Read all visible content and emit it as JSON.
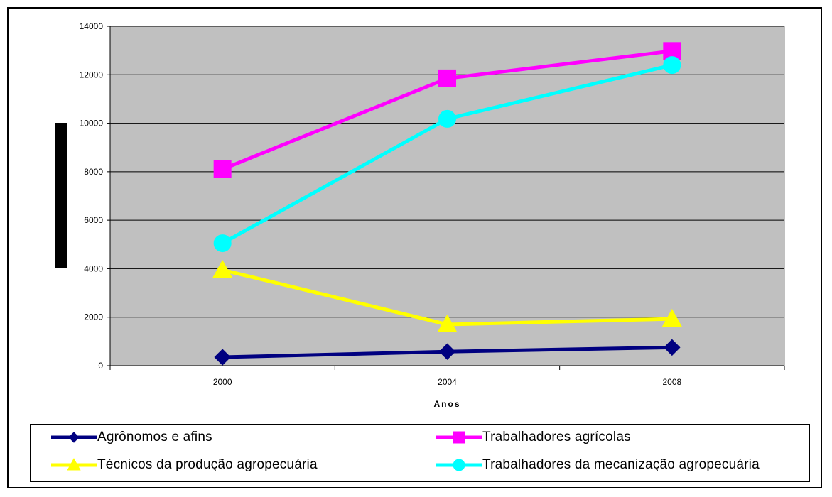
{
  "chart_data": {
    "type": "line",
    "x": [
      2000,
      2004,
      2008
    ],
    "categories": [
      "2000",
      "2004",
      "2008"
    ],
    "xlabel": "Anos",
    "ylabel": "",
    "ylim": [
      0,
      14000
    ],
    "yticks": [
      0,
      2000,
      4000,
      6000,
      8000,
      10000,
      12000,
      14000
    ],
    "ytick_labels": [
      "0",
      "2000",
      "4000",
      "6000",
      "8000",
      "10000",
      "12000",
      "14000"
    ],
    "grid": true,
    "plot_background": "#c0c0c0",
    "legend_position": "bottom",
    "series": [
      {
        "name": "Agrônomos e afins",
        "values": [
          350,
          580,
          750
        ],
        "color": "#000080",
        "marker": "diamond"
      },
      {
        "name": "Trabalhadores agrícolas",
        "values": [
          8100,
          11850,
          12980
        ],
        "color": "#ff00ff",
        "marker": "square"
      },
      {
        "name": "Técnicos da produção agropecuária",
        "values": [
          3950,
          1700,
          1930
        ],
        "color": "#ffff00",
        "marker": "triangle"
      },
      {
        "name": "Trabalhadores da mecanização agropecuária",
        "values": [
          5050,
          10180,
          12400
        ],
        "color": "#00ffff",
        "marker": "circle"
      }
    ]
  }
}
